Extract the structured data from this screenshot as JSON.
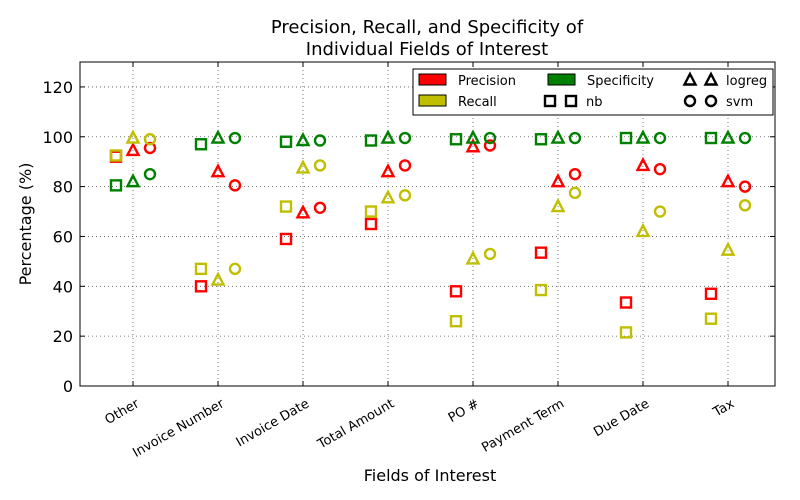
{
  "chart_data": {
    "type": "scatter",
    "title": [
      "Precision, Recall, and Specificity of",
      "Individual Fields of Interest"
    ],
    "xlabel": "Fields of Interest",
    "ylabel": "Percentage (%)",
    "ylim": [
      0,
      130
    ],
    "yticks": [
      0,
      20,
      40,
      60,
      80,
      100,
      120
    ],
    "grid": true,
    "categories": [
      "Other",
      "Invoice Number",
      "Invoice Date",
      "Total Amount",
      "PO #",
      "Payment Term",
      "Due Date",
      "Tax"
    ],
    "colors": {
      "Precision": "#ff0000",
      "Recall": "#bfbf00",
      "Specificity": "#008000"
    },
    "legend": {
      "placement": "top-right",
      "metrics": [
        "Precision",
        "Recall",
        "Specificity"
      ],
      "models": [
        {
          "name": "logreg",
          "marker": "triangle"
        },
        {
          "name": "nb",
          "marker": "square"
        },
        {
          "name": "svm",
          "marker": "circle"
        }
      ]
    },
    "series": [
      {
        "model": "nb",
        "metric": "Precision",
        "values": [
          92,
          40,
          59,
          65,
          38,
          53.5,
          33.5,
          37
        ]
      },
      {
        "model": "nb",
        "metric": "Recall",
        "values": [
          92.5,
          47,
          72,
          70,
          26,
          38.5,
          21.5,
          27
        ]
      },
      {
        "model": "nb",
        "metric": "Specificity",
        "values": [
          80.5,
          97,
          98,
          98.5,
          99,
          99,
          99.5,
          99.5
        ]
      },
      {
        "model": "logreg",
        "metric": "Precision",
        "values": [
          94.5,
          86,
          69.5,
          86,
          96,
          82,
          88.5,
          82
        ]
      },
      {
        "model": "logreg",
        "metric": "Recall",
        "values": [
          99.5,
          42.5,
          87.5,
          75.5,
          51,
          72,
          62,
          54.5
        ]
      },
      {
        "model": "logreg",
        "metric": "Specificity",
        "values": [
          82,
          99.5,
          98.5,
          99.5,
          99.5,
          99.5,
          99.5,
          99.5
        ]
      },
      {
        "model": "svm",
        "metric": "Precision",
        "values": [
          95.5,
          80.5,
          71.5,
          88.5,
          96.5,
          85,
          87,
          80
        ]
      },
      {
        "model": "svm",
        "metric": "Recall",
        "values": [
          99,
          47,
          88.5,
          76.5,
          53,
          77.5,
          70,
          72.5
        ]
      },
      {
        "model": "svm",
        "metric": "Specificity",
        "values": [
          85,
          99.5,
          98.5,
          99.5,
          99.5,
          99.5,
          99.5,
          99.5
        ]
      }
    ]
  }
}
